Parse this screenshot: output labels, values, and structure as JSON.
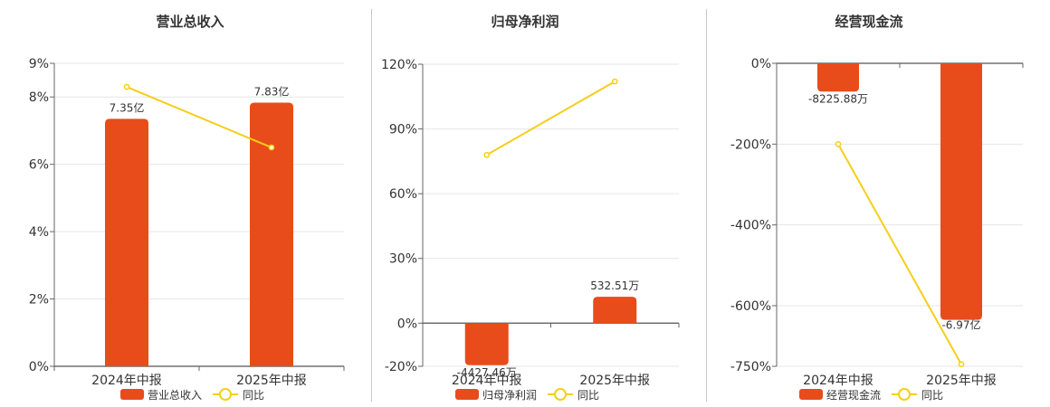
{
  "chart_data": [
    {
      "type": "bar",
      "title": "营业总收入",
      "categories": [
        "2024年中报",
        "2025年中报"
      ],
      "y_ticks": [
        "0%",
        "2%",
        "4%",
        "6%",
        "8%",
        "9%"
      ],
      "ylim": [
        0,
        9
      ],
      "series": [
        {
          "name": "营业总收入",
          "kind": "bar",
          "color": "#E84C1A",
          "values": [
            7.35,
            7.83
          ],
          "labels": [
            "7.35亿",
            "7.83亿"
          ]
        },
        {
          "name": "同比",
          "kind": "line",
          "color": "#F5CE1B",
          "values": [
            8.3,
            6.5
          ]
        }
      ],
      "legend": "bottom-center",
      "grid": true
    },
    {
      "type": "bar",
      "title": "归母净利润",
      "categories": [
        "2024年中报",
        "2025年中报"
      ],
      "y_ticks": [
        "-20%",
        "0%",
        "30%",
        "60%",
        "90%",
        "120%"
      ],
      "ylim": [
        -20,
        120
      ],
      "series": [
        {
          "name": "归母净利润",
          "kind": "bar",
          "color": "#E84C1A",
          "values": [
            -19.5,
            12.2
          ],
          "labels": [
            "-4427.46万",
            "532.51万"
          ]
        },
        {
          "name": "同比",
          "kind": "line",
          "color": "#F5CE1B",
          "values": [
            78,
            112
          ]
        }
      ],
      "legend": "bottom-center",
      "grid": true
    },
    {
      "type": "bar",
      "title": "经营现金流",
      "categories": [
        "2024年中报",
        "2025年中报"
      ],
      "y_ticks": [
        "-750%",
        "-600%",
        "-400%",
        "-200%",
        "0%"
      ],
      "ylim": [
        -750,
        0
      ],
      "series": [
        {
          "name": "经营现金流",
          "kind": "bar",
          "color": "#E84C1A",
          "values": [
            -70,
            -635
          ],
          "labels": [
            "-8225.88万",
            "-6.97亿"
          ]
        },
        {
          "name": "同比",
          "kind": "line",
          "color": "#F5CE1B",
          "values": [
            -200,
            -745
          ]
        }
      ],
      "legend": "bottom-center",
      "grid": true
    }
  ]
}
